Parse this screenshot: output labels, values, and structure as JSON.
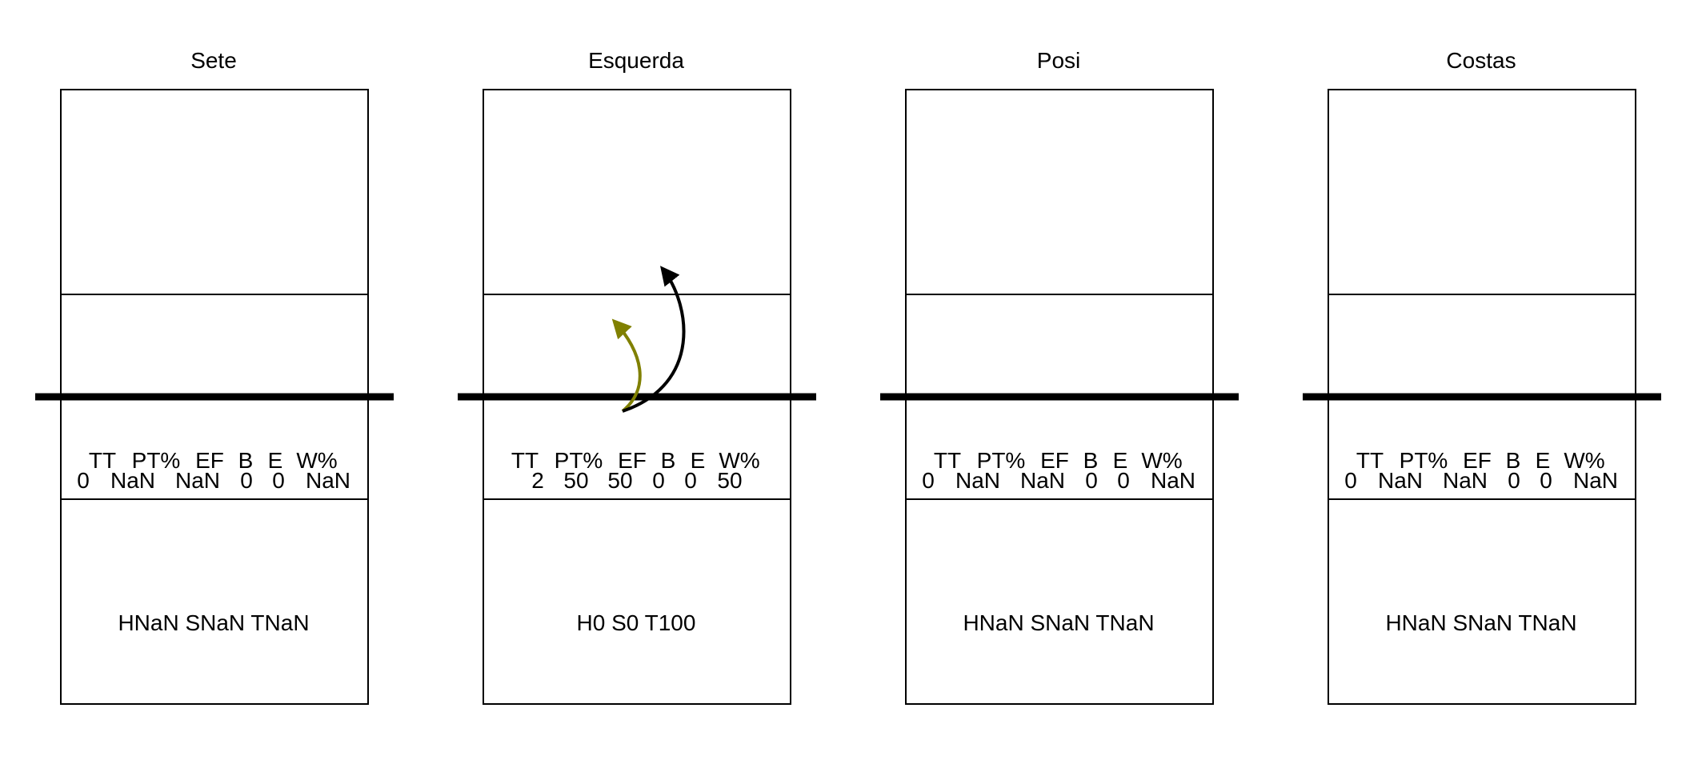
{
  "panels": [
    {
      "title": "Sete",
      "stats": {
        "headers": [
          "TT",
          "PT%",
          "EF",
          "B",
          "E",
          "W%"
        ],
        "values": [
          "0",
          "NaN",
          "NaN",
          "0",
          "0",
          "NaN"
        ]
      },
      "footer": "HNaN SNaN TNaN",
      "arrows": []
    },
    {
      "title": "Esquerda",
      "stats": {
        "headers": [
          "TT",
          "PT%",
          "EF",
          "B",
          "E",
          "W%"
        ],
        "values": [
          "2",
          "50",
          "50",
          "0",
          "0",
          "50"
        ]
      },
      "footer": "H0 S0 T100",
      "arrows": [
        {
          "color": "#808000",
          "name": "olive"
        },
        {
          "color": "#000000",
          "name": "black"
        }
      ]
    },
    {
      "title": "Posi",
      "stats": {
        "headers": [
          "TT",
          "PT%",
          "EF",
          "B",
          "E",
          "W%"
        ],
        "values": [
          "0",
          "NaN",
          "NaN",
          "0",
          "0",
          "NaN"
        ]
      },
      "footer": "HNaN SNaN TNaN",
      "arrows": []
    },
    {
      "title": "Costas",
      "stats": {
        "headers": [
          "TT",
          "PT%",
          "EF",
          "B",
          "E",
          "W%"
        ],
        "values": [
          "0",
          "NaN",
          "NaN",
          "0",
          "0",
          "NaN"
        ]
      },
      "footer": "HNaN SNaN TNaN",
      "arrows": []
    }
  ]
}
